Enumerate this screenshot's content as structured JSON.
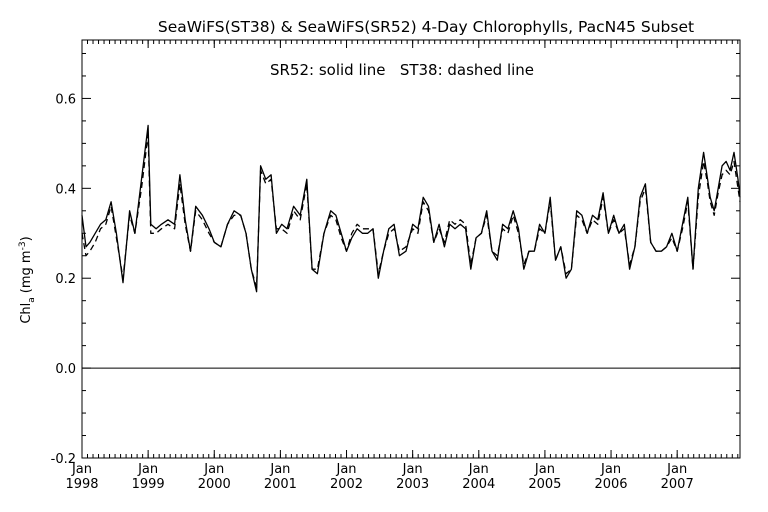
{
  "chart_data": {
    "type": "line",
    "title": "SeaWiFS(ST38) & SeaWiFS(SR52) 4-Day Chlorophylls, PacN45 Subset",
    "annotation": "SR52: solid line   ST38: dashed line",
    "ylabel_main": "Chl",
    "ylabel_sub": "a",
    "ylabel_unit": "(mg m",
    "ylabel_sup": "-3",
    "ylabel_close": ")",
    "ylim": [
      -0.2,
      0.73
    ],
    "yticks": [
      -0.2,
      0.0,
      0.2,
      0.4,
      0.6
    ],
    "ytick_labels": [
      "-0.2",
      "0.0",
      "0.2",
      "0.4",
      "0.6"
    ],
    "xlim": [
      1998.0,
      2007.95
    ],
    "xtick_years": [
      1998,
      1999,
      2000,
      2001,
      2002,
      2003,
      2004,
      2005,
      2006,
      2007
    ],
    "xtick_month": "Jan",
    "xtick_labels": [
      "1998",
      "1999",
      "2000",
      "2001",
      "2002",
      "2003",
      "2004",
      "2005",
      "2006",
      "2007"
    ],
    "hline": 0.0,
    "series": [
      {
        "name": "SR52",
        "style": "solid",
        "color": "#000000",
        "points": [
          [
            1998.0,
            0.34
          ],
          [
            1998.06,
            0.27
          ],
          [
            1998.12,
            0.28
          ],
          [
            1998.2,
            0.3
          ],
          [
            1998.28,
            0.32
          ],
          [
            1998.36,
            0.33
          ],
          [
            1998.44,
            0.37
          ],
          [
            1998.52,
            0.3
          ],
          [
            1998.62,
            0.19
          ],
          [
            1998.72,
            0.35
          ],
          [
            1998.8,
            0.3
          ],
          [
            1998.9,
            0.42
          ],
          [
            1999.0,
            0.54
          ],
          [
            1999.04,
            0.32
          ],
          [
            1999.12,
            0.31
          ],
          [
            1999.2,
            0.32
          ],
          [
            1999.3,
            0.33
          ],
          [
            1999.4,
            0.32
          ],
          [
            1999.48,
            0.43
          ],
          [
            1999.56,
            0.33
          ],
          [
            1999.64,
            0.26
          ],
          [
            1999.72,
            0.36
          ],
          [
            1999.82,
            0.34
          ],
          [
            1999.92,
            0.31
          ],
          [
            2000.0,
            0.28
          ],
          [
            2000.1,
            0.27
          ],
          [
            2000.2,
            0.32
          ],
          [
            2000.3,
            0.35
          ],
          [
            2000.4,
            0.34
          ],
          [
            2000.48,
            0.3
          ],
          [
            2000.56,
            0.22
          ],
          [
            2000.64,
            0.17
          ],
          [
            2000.7,
            0.45
          ],
          [
            2000.78,
            0.42
          ],
          [
            2000.86,
            0.43
          ],
          [
            2000.94,
            0.3
          ],
          [
            2001.02,
            0.32
          ],
          [
            2001.1,
            0.31
          ],
          [
            2001.2,
            0.36
          ],
          [
            2001.3,
            0.34
          ],
          [
            2001.4,
            0.42
          ],
          [
            2001.48,
            0.22
          ],
          [
            2001.56,
            0.21
          ],
          [
            2001.66,
            0.3
          ],
          [
            2001.76,
            0.35
          ],
          [
            2001.84,
            0.34
          ],
          [
            2001.92,
            0.3
          ],
          [
            2002.0,
            0.26
          ],
          [
            2002.08,
            0.29
          ],
          [
            2002.16,
            0.31
          ],
          [
            2002.24,
            0.3
          ],
          [
            2002.32,
            0.3
          ],
          [
            2002.4,
            0.31
          ],
          [
            2002.48,
            0.2
          ],
          [
            2002.56,
            0.26
          ],
          [
            2002.64,
            0.31
          ],
          [
            2002.72,
            0.32
          ],
          [
            2002.8,
            0.25
          ],
          [
            2002.9,
            0.26
          ],
          [
            2003.0,
            0.32
          ],
          [
            2003.08,
            0.31
          ],
          [
            2003.16,
            0.38
          ],
          [
            2003.24,
            0.36
          ],
          [
            2003.32,
            0.28
          ],
          [
            2003.4,
            0.32
          ],
          [
            2003.48,
            0.27
          ],
          [
            2003.56,
            0.32
          ],
          [
            2003.64,
            0.31
          ],
          [
            2003.72,
            0.32
          ],
          [
            2003.8,
            0.31
          ],
          [
            2003.88,
            0.22
          ],
          [
            2003.96,
            0.29
          ],
          [
            2004.04,
            0.3
          ],
          [
            2004.12,
            0.35
          ],
          [
            2004.2,
            0.26
          ],
          [
            2004.28,
            0.24
          ],
          [
            2004.36,
            0.32
          ],
          [
            2004.44,
            0.31
          ],
          [
            2004.52,
            0.35
          ],
          [
            2004.6,
            0.31
          ],
          [
            2004.68,
            0.22
          ],
          [
            2004.76,
            0.26
          ],
          [
            2004.84,
            0.26
          ],
          [
            2004.92,
            0.32
          ],
          [
            2005.0,
            0.3
          ],
          [
            2005.08,
            0.38
          ],
          [
            2005.16,
            0.24
          ],
          [
            2005.24,
            0.27
          ],
          [
            2005.32,
            0.2
          ],
          [
            2005.4,
            0.22
          ],
          [
            2005.48,
            0.35
          ],
          [
            2005.56,
            0.34
          ],
          [
            2005.64,
            0.3
          ],
          [
            2005.72,
            0.34
          ],
          [
            2005.8,
            0.33
          ],
          [
            2005.88,
            0.39
          ],
          [
            2005.96,
            0.3
          ],
          [
            2006.04,
            0.34
          ],
          [
            2006.12,
            0.3
          ],
          [
            2006.2,
            0.32
          ],
          [
            2006.28,
            0.22
          ],
          [
            2006.36,
            0.27
          ],
          [
            2006.44,
            0.38
          ],
          [
            2006.52,
            0.41
          ],
          [
            2006.6,
            0.28
          ],
          [
            2006.68,
            0.26
          ],
          [
            2006.76,
            0.26
          ],
          [
            2006.84,
            0.27
          ],
          [
            2006.92,
            0.3
          ],
          [
            2007.0,
            0.26
          ],
          [
            2007.08,
            0.32
          ],
          [
            2007.16,
            0.38
          ],
          [
            2007.24,
            0.22
          ],
          [
            2007.32,
            0.4
          ],
          [
            2007.4,
            0.48
          ],
          [
            2007.46,
            0.42
          ],
          [
            2007.5,
            0.38
          ],
          [
            2007.56,
            0.35
          ],
          [
            2007.62,
            0.4
          ],
          [
            2007.68,
            0.45
          ],
          [
            2007.74,
            0.46
          ],
          [
            2007.8,
            0.44
          ],
          [
            2007.86,
            0.48
          ],
          [
            2007.92,
            0.42
          ],
          [
            2007.95,
            0.38
          ]
        ]
      },
      {
        "name": "ST38",
        "style": "dashed",
        "color": "#000000",
        "points": [
          [
            1998.0,
            0.3
          ],
          [
            1998.06,
            0.25
          ],
          [
            1998.12,
            0.26
          ],
          [
            1998.2,
            0.28
          ],
          [
            1998.28,
            0.31
          ],
          [
            1998.36,
            0.32
          ],
          [
            1998.44,
            0.36
          ],
          [
            1998.52,
            0.29
          ],
          [
            1998.62,
            0.2
          ],
          [
            1998.72,
            0.34
          ],
          [
            1998.8,
            0.3
          ],
          [
            1998.9,
            0.4
          ],
          [
            1999.0,
            0.52
          ],
          [
            1999.04,
            0.3
          ],
          [
            1999.12,
            0.3
          ],
          [
            1999.2,
            0.31
          ],
          [
            1999.3,
            0.32
          ],
          [
            1999.4,
            0.31
          ],
          [
            1999.48,
            0.41
          ],
          [
            1999.56,
            0.32
          ],
          [
            1999.64,
            0.26
          ],
          [
            1999.72,
            0.35
          ],
          [
            1999.82,
            0.33
          ],
          [
            1999.92,
            0.3
          ],
          [
            2000.0,
            0.28
          ],
          [
            2000.1,
            0.27
          ],
          [
            2000.2,
            0.32
          ],
          [
            2000.3,
            0.34
          ],
          [
            2000.4,
            0.34
          ],
          [
            2000.48,
            0.3
          ],
          [
            2000.56,
            0.22
          ],
          [
            2000.64,
            0.18
          ],
          [
            2000.7,
            0.44
          ],
          [
            2000.78,
            0.41
          ],
          [
            2000.86,
            0.42
          ],
          [
            2000.94,
            0.31
          ],
          [
            2001.02,
            0.31
          ],
          [
            2001.1,
            0.3
          ],
          [
            2001.2,
            0.35
          ],
          [
            2001.3,
            0.33
          ],
          [
            2001.4,
            0.41
          ],
          [
            2001.48,
            0.22
          ],
          [
            2001.56,
            0.22
          ],
          [
            2001.66,
            0.3
          ],
          [
            2001.76,
            0.34
          ],
          [
            2001.84,
            0.33
          ],
          [
            2001.92,
            0.29
          ],
          [
            2002.0,
            0.26
          ],
          [
            2002.08,
            0.3
          ],
          [
            2002.16,
            0.32
          ],
          [
            2002.24,
            0.31
          ],
          [
            2002.32,
            0.31
          ],
          [
            2002.4,
            0.31
          ],
          [
            2002.48,
            0.21
          ],
          [
            2002.56,
            0.26
          ],
          [
            2002.64,
            0.3
          ],
          [
            2002.72,
            0.31
          ],
          [
            2002.8,
            0.26
          ],
          [
            2002.9,
            0.27
          ],
          [
            2003.0,
            0.31
          ],
          [
            2003.08,
            0.3
          ],
          [
            2003.16,
            0.37
          ],
          [
            2003.24,
            0.35
          ],
          [
            2003.32,
            0.28
          ],
          [
            2003.4,
            0.31
          ],
          [
            2003.48,
            0.28
          ],
          [
            2003.56,
            0.33
          ],
          [
            2003.64,
            0.32
          ],
          [
            2003.72,
            0.33
          ],
          [
            2003.8,
            0.32
          ],
          [
            2003.88,
            0.23
          ],
          [
            2003.96,
            0.29
          ],
          [
            2004.04,
            0.3
          ],
          [
            2004.12,
            0.34
          ],
          [
            2004.2,
            0.26
          ],
          [
            2004.28,
            0.25
          ],
          [
            2004.36,
            0.31
          ],
          [
            2004.44,
            0.3
          ],
          [
            2004.52,
            0.34
          ],
          [
            2004.6,
            0.3
          ],
          [
            2004.68,
            0.23
          ],
          [
            2004.76,
            0.26
          ],
          [
            2004.84,
            0.26
          ],
          [
            2004.92,
            0.31
          ],
          [
            2005.0,
            0.3
          ],
          [
            2005.08,
            0.37
          ],
          [
            2005.16,
            0.24
          ],
          [
            2005.24,
            0.27
          ],
          [
            2005.32,
            0.21
          ],
          [
            2005.4,
            0.22
          ],
          [
            2005.48,
            0.34
          ],
          [
            2005.56,
            0.33
          ],
          [
            2005.64,
            0.3
          ],
          [
            2005.72,
            0.33
          ],
          [
            2005.8,
            0.32
          ],
          [
            2005.88,
            0.38
          ],
          [
            2005.96,
            0.3
          ],
          [
            2006.04,
            0.33
          ],
          [
            2006.12,
            0.3
          ],
          [
            2006.2,
            0.31
          ],
          [
            2006.28,
            0.23
          ],
          [
            2006.36,
            0.27
          ],
          [
            2006.44,
            0.37
          ],
          [
            2006.52,
            0.4
          ],
          [
            2006.6,
            0.28
          ],
          [
            2006.68,
            0.26
          ],
          [
            2006.76,
            0.26
          ],
          [
            2006.84,
            0.27
          ],
          [
            2006.92,
            0.29
          ],
          [
            2007.0,
            0.26
          ],
          [
            2007.08,
            0.31
          ],
          [
            2007.16,
            0.37
          ],
          [
            2007.24,
            0.22
          ],
          [
            2007.32,
            0.38
          ],
          [
            2007.4,
            0.46
          ],
          [
            2007.46,
            0.41
          ],
          [
            2007.5,
            0.37
          ],
          [
            2007.56,
            0.34
          ],
          [
            2007.62,
            0.39
          ],
          [
            2007.68,
            0.43
          ],
          [
            2007.74,
            0.44
          ],
          [
            2007.8,
            0.43
          ],
          [
            2007.86,
            0.46
          ],
          [
            2007.92,
            0.4
          ],
          [
            2007.95,
            0.37
          ]
        ]
      }
    ]
  }
}
